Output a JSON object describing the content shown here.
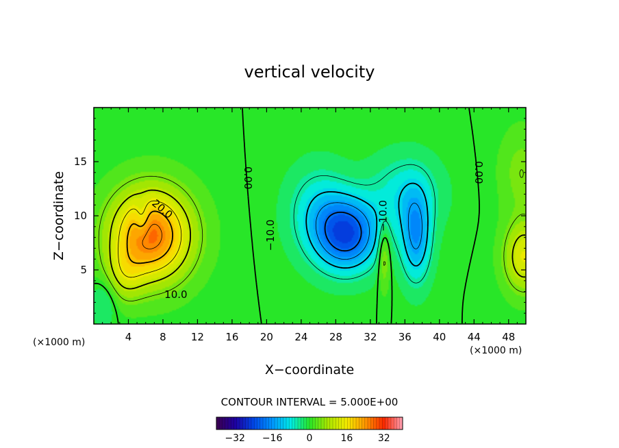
{
  "chart_data": {
    "type": "heatmap",
    "title": "vertical velocity",
    "xlabel": "X−coordinate",
    "ylabel": "Z−coordinate",
    "x_unit_left": "(×1000 m)",
    "x_unit_right": "(×1000 m)",
    "xlim": [
      0,
      50
    ],
    "ylim": [
      0,
      20
    ],
    "x_ticks": [
      4,
      8,
      12,
      16,
      20,
      24,
      28,
      32,
      36,
      40,
      44,
      48
    ],
    "x_tick_labels": [
      "4",
      "8",
      "12",
      "16",
      "20",
      "24",
      "28",
      "32",
      "36",
      "40",
      "44",
      "48"
    ],
    "y_ticks": [
      5,
      10,
      15
    ],
    "y_tick_labels": [
      "5",
      "10",
      "15"
    ],
    "contour_interval_text": "CONTOUR INTERVAL = 5.000E+00",
    "contour_labels": [
      {
        "text": "20.0",
        "x": 7.9,
        "z": 10.6,
        "angle": 40
      },
      {
        "text": "10.0",
        "x": 9.5,
        "z": 2.7,
        "angle": 0
      },
      {
        "text": "0.00",
        "x": 17.8,
        "z": 13.5,
        "angle": 90
      },
      {
        "text": "0.00",
        "x": 44.5,
        "z": 14.0,
        "angle": 90
      },
      {
        "text": "−10.0",
        "x": 20.5,
        "z": 8.2,
        "angle": -90
      },
      {
        "text": "−10.0",
        "x": 33.5,
        "z": 10.0,
        "angle": -90
      }
    ],
    "colorbar": {
      "range": [
        -40,
        40
      ],
      "ticks": [
        -32,
        -16,
        0,
        16,
        32
      ],
      "tick_labels": [
        "−32",
        "−16",
        "0",
        "16",
        "32"
      ]
    },
    "features": [
      {
        "kind": "updraft",
        "x": 6.5,
        "z": 8.0,
        "peak": 27
      },
      {
        "kind": "downdraft",
        "x": 29.5,
        "z": 8.0,
        "peak": -23
      },
      {
        "kind": "downdraft",
        "x": 37.5,
        "z": 8.0,
        "peak": -15
      },
      {
        "kind": "updraft",
        "x": 49.5,
        "z": 6.0,
        "peak": 14
      }
    ]
  }
}
